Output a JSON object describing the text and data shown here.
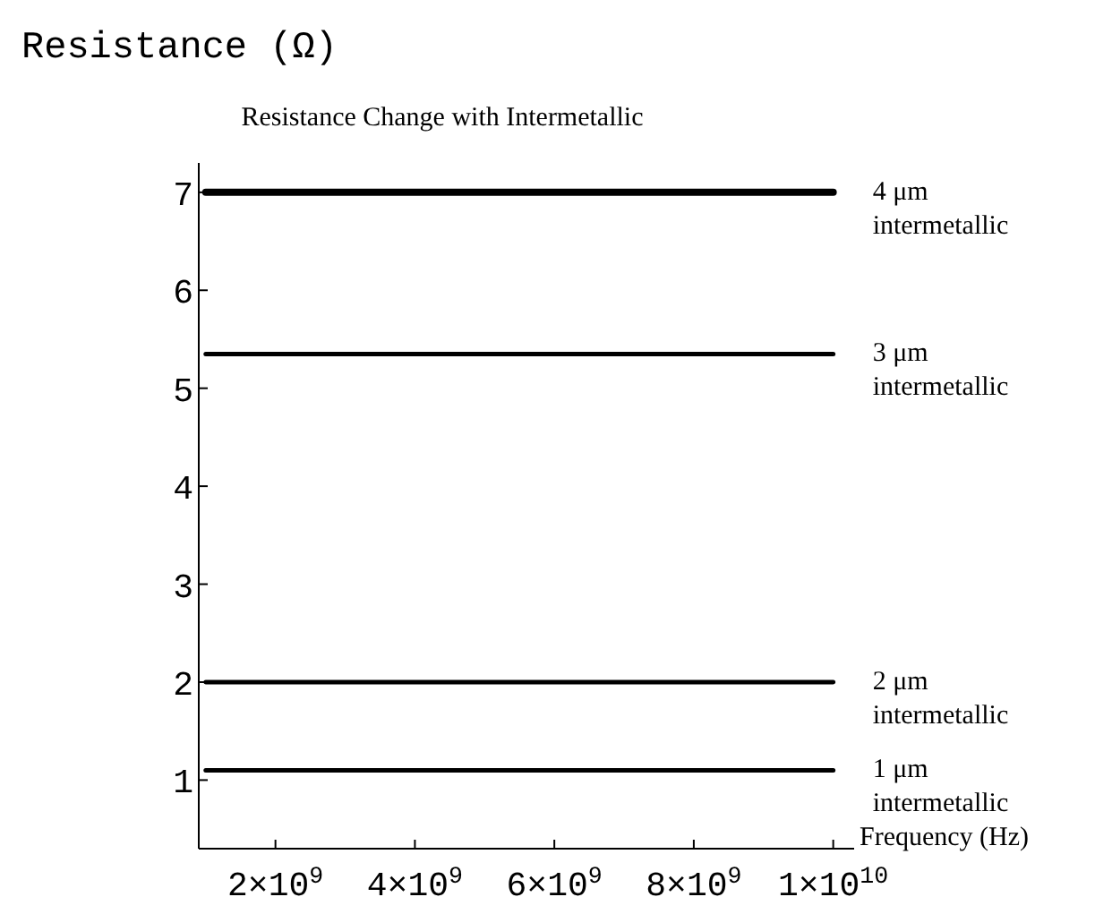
{
  "chart_data": {
    "type": "line",
    "title": "Resistance Change with Intermetallic",
    "ylabel": "Resistance (Ω)",
    "xlabel": "Frequency (Hz)",
    "x": [
      1000000000,
      10000000000
    ],
    "xlim": [
      900000000,
      10300000000
    ],
    "xticks": [
      {
        "value": 2000000000,
        "label": "2×10$^{9}$"
      },
      {
        "value": 4000000000,
        "label": "4×10$^{9}$"
      },
      {
        "value": 6000000000,
        "label": "6×10$^{9}$"
      },
      {
        "value": 8000000000,
        "label": "8×10$^{9}$"
      },
      {
        "value": 10000000000,
        "label": "1×10$^{10}$"
      }
    ],
    "ylim": [
      0.3,
      7.3
    ],
    "yticks": [
      1,
      2,
      3,
      4,
      5,
      6,
      7
    ],
    "series": [
      {
        "name": "4 μm intermetallic",
        "color": "#000000",
        "values": [
          7.0,
          7.0
        ]
      },
      {
        "name": "3 μm intermetallic",
        "color": "#000000",
        "values": [
          5.35,
          5.35
        ]
      },
      {
        "name": "2 μm intermetallic",
        "color": "#000000",
        "values": [
          2.0,
          2.0
        ]
      },
      {
        "name": "1 μm intermetallic",
        "color": "#000000",
        "values": [
          1.1,
          1.1
        ]
      }
    ]
  }
}
